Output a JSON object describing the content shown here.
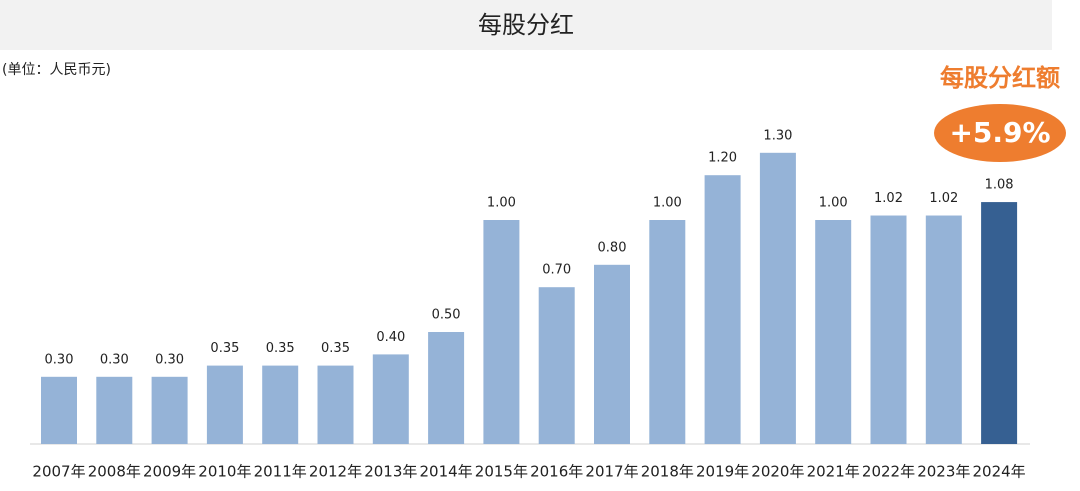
{
  "chart_data": {
    "type": "bar",
    "title": "每股分红",
    "subtitle": "(单位：人民币元)",
    "annotation": "每股分红额",
    "highlight": "+5.9%",
    "highlight_color": "#ee7d2f",
    "categories": [
      "2007年",
      "2008年",
      "2009年",
      "2010年",
      "2011年",
      "2012年",
      "2013年",
      "2014年",
      "2015年",
      "2016年",
      "2017年",
      "2018年",
      "2019年",
      "2020年",
      "2021年",
      "2022年",
      "2023年",
      "2024年"
    ],
    "values": [
      0.3,
      0.3,
      0.3,
      0.35,
      0.35,
      0.35,
      0.4,
      0.5,
      1.0,
      0.7,
      0.8,
      1.0,
      1.2,
      1.3,
      1.0,
      1.02,
      1.02,
      1.08
    ],
    "value_labels": [
      "0.30",
      "0.30",
      "0.30",
      "0.35",
      "0.35",
      "0.35",
      "0.40",
      "0.50",
      "1.00",
      "0.70",
      "0.80",
      "1.00",
      "1.20",
      "1.30",
      "1.00",
      "1.02",
      "1.02",
      "1.08"
    ],
    "colors": [
      "#95b3d7",
      "#95b3d7",
      "#95b3d7",
      "#95b3d7",
      "#95b3d7",
      "#95b3d7",
      "#95b3d7",
      "#95b3d7",
      "#95b3d7",
      "#95b3d7",
      "#95b3d7",
      "#95b3d7",
      "#95b3d7",
      "#95b3d7",
      "#95b3d7",
      "#95b3d7",
      "#95b3d7",
      "#366092"
    ],
    "grid": false
  }
}
